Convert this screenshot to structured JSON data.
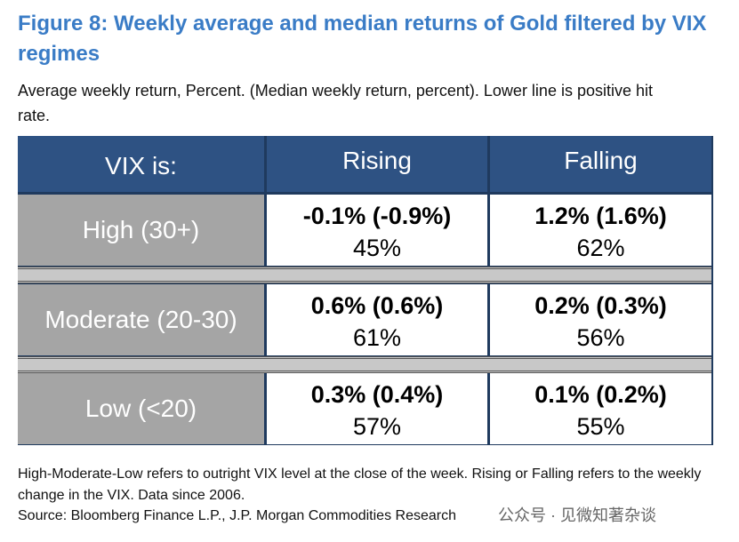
{
  "header": {
    "title": "Figure 8: Weekly average and median returns of Gold filtered by VIX regimes",
    "subtitle": "Average weekly return, Percent. (Median weekly return, percent). Lower line is positive hit rate."
  },
  "table": {
    "columns": [
      "VIX is:",
      "Rising",
      "Falling"
    ],
    "rows": [
      {
        "label": "High (30+)",
        "cells": [
          {
            "returns": "-0.1% (-0.9%)",
            "hit_rate": "45%"
          },
          {
            "returns": "1.2% (1.6%)",
            "hit_rate": "62%"
          }
        ]
      },
      {
        "label": "Moderate (20-30)",
        "cells": [
          {
            "returns": "0.6% (0.6%)",
            "hit_rate": "61%"
          },
          {
            "returns": "0.2% (0.3%)",
            "hit_rate": "56%"
          }
        ]
      },
      {
        "label": "Low (<20)",
        "cells": [
          {
            "returns": "0.3% (0.4%)",
            "hit_rate": "57%"
          },
          {
            "returns": "0.1% (0.2%)",
            "hit_rate": "55%"
          }
        ]
      }
    ]
  },
  "footer": {
    "note": "High-Moderate-Low refers to outright VIX level at the close of the week. Rising or Falling refers to the weekly change in the VIX. Data since 2006.",
    "source": "Source: Bloomberg Finance L.P., J.P. Morgan Commodities Research",
    "watermark": "公众号 · 见微知著杂谈"
  }
}
